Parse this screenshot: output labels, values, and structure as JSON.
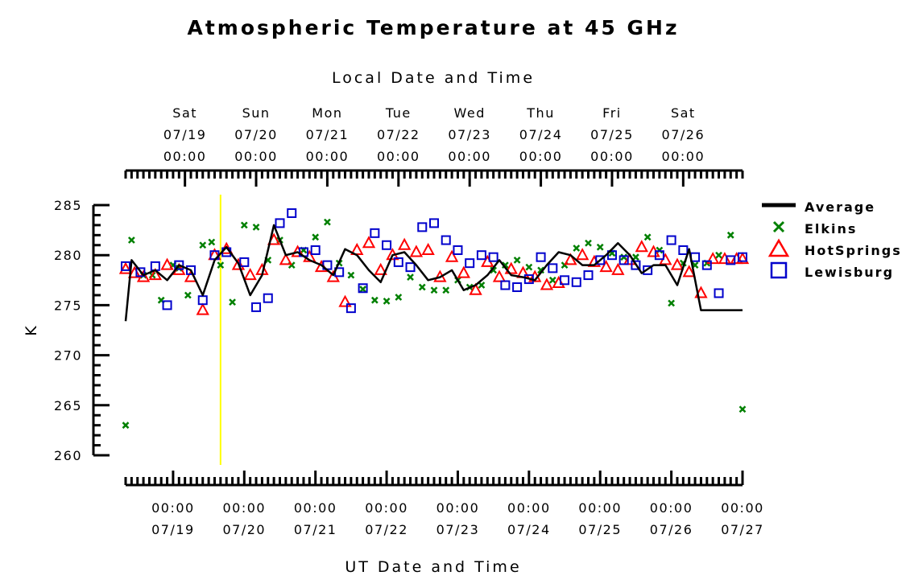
{
  "chart_data": {
    "type": "line",
    "title": "Atmospheric Temperature at 45 GHz",
    "top_axis_label": "Local Date and Time",
    "xlabel": "UT Date and Time",
    "ylabel": "K",
    "ylim": [
      260,
      285
    ],
    "y_ticks": [
      260,
      265,
      270,
      275,
      280,
      285
    ],
    "ut_x_range": [
      "2008-07-18T08:00",
      "2008-07-27T00:00"
    ],
    "ut_ticks": [
      {
        "date": "07/19",
        "time": "00:00"
      },
      {
        "date": "07/20",
        "time": "00:00"
      },
      {
        "date": "07/21",
        "time": "00:00"
      },
      {
        "date": "07/22",
        "time": "00:00"
      },
      {
        "date": "07/23",
        "time": "00:00"
      },
      {
        "date": "07/24",
        "time": "00:00"
      },
      {
        "date": "07/25",
        "time": "00:00"
      },
      {
        "date": "07/26",
        "time": "00:00"
      },
      {
        "date": "07/27",
        "time": "00:00"
      }
    ],
    "local_ticks": [
      {
        "day": "Sat",
        "date": "07/19",
        "time": "00:00"
      },
      {
        "day": "Sun",
        "date": "07/20",
        "time": "00:00"
      },
      {
        "day": "Mon",
        "date": "07/21",
        "time": "00:00"
      },
      {
        "day": "Tue",
        "date": "07/22",
        "time": "00:00"
      },
      {
        "day": "Wed",
        "date": "07/23",
        "time": "00:00"
      },
      {
        "day": "Thu",
        "date": "07/24",
        "time": "00:00"
      },
      {
        "day": "Fri",
        "date": "07/25",
        "time": "00:00"
      },
      {
        "day": "Sat",
        "date": "07/26",
        "time": "00:00"
      }
    ],
    "local_offset_hours": -4,
    "marker_line": {
      "x": "2008-07-19T16:00",
      "color": "#ffff00"
    },
    "legend": {
      "placement": "right"
    },
    "series": [
      {
        "name": "Average",
        "marker": "line",
        "color": "#000000",
        "x": [
          "2008-07-18T08:00",
          "2008-07-18T10:00",
          "2008-07-18T14:00",
          "2008-07-18T18:00",
          "2008-07-18T22:00",
          "2008-07-19T02:00",
          "2008-07-19T06:00",
          "2008-07-19T10:00",
          "2008-07-19T14:00",
          "2008-07-19T18:00",
          "2008-07-19T22:00",
          "2008-07-20T02:00",
          "2008-07-20T06:00",
          "2008-07-20T10:00",
          "2008-07-20T14:00",
          "2008-07-20T18:00",
          "2008-07-20T22:00",
          "2008-07-21T02:00",
          "2008-07-21T06:00",
          "2008-07-21T10:00",
          "2008-07-21T14:00",
          "2008-07-21T18:00",
          "2008-07-21T22:00",
          "2008-07-22T02:00",
          "2008-07-22T06:00",
          "2008-07-22T10:00",
          "2008-07-22T14:00",
          "2008-07-22T18:00",
          "2008-07-22T22:00",
          "2008-07-23T02:00",
          "2008-07-23T06:00",
          "2008-07-23T10:00",
          "2008-07-23T14:00",
          "2008-07-23T18:00",
          "2008-07-23T22:00",
          "2008-07-24T02:00",
          "2008-07-24T06:00",
          "2008-07-24T10:00",
          "2008-07-24T14:00",
          "2008-07-24T18:00",
          "2008-07-24T22:00",
          "2008-07-25T02:00",
          "2008-07-25T06:00",
          "2008-07-25T10:00",
          "2008-07-25T14:00",
          "2008-07-25T18:00",
          "2008-07-25T22:00",
          "2008-07-26T02:00",
          "2008-07-26T06:00",
          "2008-07-26T10:00",
          "2008-07-26T14:00",
          "2008-07-26T18:00",
          "2008-07-26T22:00",
          "2008-07-27T00:00"
        ],
        "values": [
          273.4,
          279.5,
          278.0,
          278.5,
          277.5,
          279.0,
          278.5,
          276.0,
          279.5,
          280.8,
          279.2,
          276.0,
          278.0,
          283.0,
          280.0,
          280.3,
          279.5,
          279.0,
          278.0,
          280.6,
          280.0,
          278.5,
          277.3,
          280.0,
          280.3,
          279.0,
          277.5,
          277.8,
          278.5,
          276.5,
          277.0,
          278.0,
          279.5,
          278.0,
          277.8,
          277.5,
          279.0,
          280.3,
          280.0,
          279.0,
          279.0,
          280.0,
          281.2,
          280.0,
          278.2,
          279.0,
          279.0,
          277.0,
          280.6,
          274.5,
          274.5,
          274.5,
          274.5,
          274.5
        ]
      },
      {
        "name": "Elkins",
        "marker": "x",
        "color": "#008000",
        "x": [
          "2008-07-18T08:00",
          "2008-07-18T10:00",
          "2008-07-18T14:00",
          "2008-07-18T17:00",
          "2008-07-18T20:00",
          "2008-07-19T00:00",
          "2008-07-19T02:00",
          "2008-07-19T05:00",
          "2008-07-19T10:00",
          "2008-07-19T13:00",
          "2008-07-19T16:00",
          "2008-07-19T20:00",
          "2008-07-20T00:00",
          "2008-07-20T04:00",
          "2008-07-20T08:00",
          "2008-07-20T12:00",
          "2008-07-20T16:00",
          "2008-07-20T20:00",
          "2008-07-21T00:00",
          "2008-07-21T04:00",
          "2008-07-21T08:00",
          "2008-07-21T12:00",
          "2008-07-21T16:00",
          "2008-07-21T20:00",
          "2008-07-22T00:00",
          "2008-07-22T04:00",
          "2008-07-22T08:00",
          "2008-07-22T12:00",
          "2008-07-22T16:00",
          "2008-07-22T20:00",
          "2008-07-23T00:00",
          "2008-07-23T04:00",
          "2008-07-23T08:00",
          "2008-07-23T12:00",
          "2008-07-23T16:00",
          "2008-07-23T20:00",
          "2008-07-24T00:00",
          "2008-07-24T04:00",
          "2008-07-24T08:00",
          "2008-07-24T12:00",
          "2008-07-24T16:00",
          "2008-07-24T20:00",
          "2008-07-25T00:00",
          "2008-07-25T04:00",
          "2008-07-25T08:00",
          "2008-07-25T12:00",
          "2008-07-25T16:00",
          "2008-07-25T20:00",
          "2008-07-26T00:00",
          "2008-07-26T04:00",
          "2008-07-26T08:00",
          "2008-07-26T12:00",
          "2008-07-26T16:00",
          "2008-07-26T20:00",
          "2008-07-27T00:00"
        ],
        "values": [
          263.0,
          281.5,
          278.0,
          278.0,
          275.5,
          279.0,
          278.7,
          276.0,
          281.0,
          281.3,
          279.0,
          275.3,
          283.0,
          282.8,
          279.5,
          281.5,
          279.0,
          280.5,
          281.8,
          283.3,
          279.2,
          278.0,
          276.6,
          275.5,
          275.4,
          275.8,
          277.8,
          276.8,
          276.5,
          276.5,
          277.5,
          276.8,
          277.0,
          278.5,
          279.0,
          279.5,
          278.8,
          278.5,
          277.5,
          279.0,
          280.7,
          281.2,
          280.8,
          280.2,
          279.8,
          279.8,
          281.8,
          280.5,
          275.2,
          279.2,
          279.0,
          279.2,
          280.0,
          282.0,
          264.6
        ]
      },
      {
        "name": "HotSprings",
        "marker": "triangle",
        "color": "#ff0000",
        "x": [
          "2008-07-18T08:00",
          "2008-07-18T11:00",
          "2008-07-18T14:00",
          "2008-07-18T18:00",
          "2008-07-18T22:00",
          "2008-07-19T02:00",
          "2008-07-19T06:00",
          "2008-07-19T10:00",
          "2008-07-19T14:00",
          "2008-07-19T18:00",
          "2008-07-19T22:00",
          "2008-07-20T02:00",
          "2008-07-20T06:00",
          "2008-07-20T10:00",
          "2008-07-20T14:00",
          "2008-07-20T18:00",
          "2008-07-20T22:00",
          "2008-07-21T02:00",
          "2008-07-21T06:00",
          "2008-07-21T10:00",
          "2008-07-21T14:00",
          "2008-07-21T18:00",
          "2008-07-21T22:00",
          "2008-07-22T02:00",
          "2008-07-22T06:00",
          "2008-07-22T10:00",
          "2008-07-22T14:00",
          "2008-07-22T18:00",
          "2008-07-22T22:00",
          "2008-07-23T02:00",
          "2008-07-23T06:00",
          "2008-07-23T10:00",
          "2008-07-23T14:00",
          "2008-07-23T18:00",
          "2008-07-23T22:00",
          "2008-07-24T02:00",
          "2008-07-24T06:00",
          "2008-07-24T10:00",
          "2008-07-24T14:00",
          "2008-07-24T18:00",
          "2008-07-24T22:00",
          "2008-07-25T02:00",
          "2008-07-25T06:00",
          "2008-07-25T10:00",
          "2008-07-25T14:00",
          "2008-07-25T18:00",
          "2008-07-25T22:00",
          "2008-07-26T02:00",
          "2008-07-26T06:00",
          "2008-07-26T10:00",
          "2008-07-26T14:00",
          "2008-07-26T18:00",
          "2008-07-26T22:00",
          "2008-07-27T00:00"
        ],
        "values": [
          278.6,
          278.2,
          277.8,
          278.0,
          279.0,
          278.5,
          277.8,
          274.5,
          280.0,
          280.6,
          279.0,
          278.0,
          278.5,
          281.5,
          279.5,
          280.3,
          279.8,
          278.8,
          277.8,
          275.3,
          280.5,
          281.2,
          278.5,
          280.0,
          281.0,
          280.3,
          280.5,
          277.8,
          279.8,
          278.2,
          276.5,
          279.3,
          277.8,
          278.6,
          278.2,
          277.8,
          277.0,
          277.2,
          279.5,
          280.0,
          279.3,
          278.8,
          278.5,
          279.5,
          280.8,
          280.3,
          279.5,
          279.0,
          278.3,
          276.2,
          279.6,
          279.6,
          279.6,
          279.6
        ]
      },
      {
        "name": "Lewisburg",
        "marker": "square",
        "color": "#0000cc",
        "x": [
          "2008-07-18T08:00",
          "2008-07-18T13:00",
          "2008-07-18T18:00",
          "2008-07-18T22:00",
          "2008-07-19T02:00",
          "2008-07-19T06:00",
          "2008-07-19T10:00",
          "2008-07-19T14:00",
          "2008-07-19T18:00",
          "2008-07-20T00:00",
          "2008-07-20T04:00",
          "2008-07-20T08:00",
          "2008-07-20T12:00",
          "2008-07-20T16:00",
          "2008-07-20T20:00",
          "2008-07-21T00:00",
          "2008-07-21T04:00",
          "2008-07-21T08:00",
          "2008-07-21T12:00",
          "2008-07-21T16:00",
          "2008-07-21T20:00",
          "2008-07-22T00:00",
          "2008-07-22T04:00",
          "2008-07-22T08:00",
          "2008-07-22T12:00",
          "2008-07-22T16:00",
          "2008-07-22T20:00",
          "2008-07-23T00:00",
          "2008-07-23T04:00",
          "2008-07-23T08:00",
          "2008-07-23T12:00",
          "2008-07-23T16:00",
          "2008-07-23T20:00",
          "2008-07-24T00:00",
          "2008-07-24T04:00",
          "2008-07-24T08:00",
          "2008-07-24T12:00",
          "2008-07-24T16:00",
          "2008-07-24T20:00",
          "2008-07-25T00:00",
          "2008-07-25T04:00",
          "2008-07-25T08:00",
          "2008-07-25T12:00",
          "2008-07-25T16:00",
          "2008-07-25T20:00",
          "2008-07-26T00:00",
          "2008-07-26T04:00",
          "2008-07-26T08:00",
          "2008-07-26T12:00",
          "2008-07-26T16:00",
          "2008-07-26T20:00",
          "2008-07-27T00:00"
        ],
        "values": [
          278.9,
          278.3,
          278.9,
          275.0,
          279.0,
          278.5,
          275.5,
          280.0,
          280.3,
          279.3,
          274.8,
          275.7,
          283.2,
          284.2,
          280.3,
          280.5,
          279.0,
          278.3,
          274.7,
          276.7,
          282.2,
          281.0,
          279.3,
          278.8,
          282.8,
          283.2,
          281.5,
          280.5,
          279.2,
          280.0,
          279.8,
          277.0,
          276.8,
          277.6,
          279.8,
          278.7,
          277.5,
          277.3,
          278.0,
          279.5,
          280.0,
          279.5,
          279.0,
          278.5,
          280.0,
          281.5,
          280.5,
          279.8,
          279.0,
          276.2,
          279.5,
          279.8
        ]
      }
    ]
  }
}
